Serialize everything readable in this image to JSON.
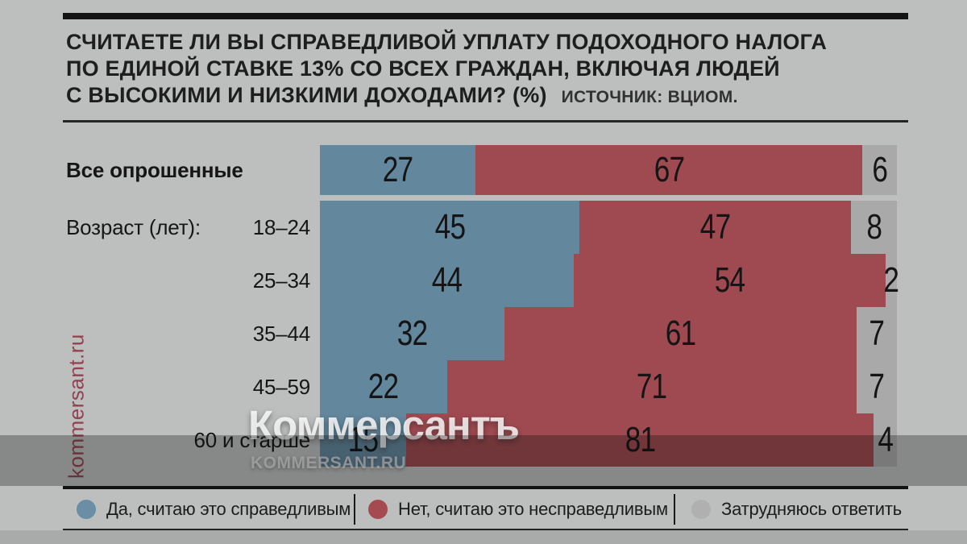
{
  "header": {
    "title_lines": [
      "Считаете ли вы справедливой уплату подоходного налога",
      "по единой ставке 13% со всех граждан, включая людей",
      "с высокими и низкими доходами? (%)"
    ],
    "source": "Источник: ВЦИОМ."
  },
  "chart_data": {
    "type": "bar",
    "orientation": "horizontal",
    "stacked": true,
    "unit": "%",
    "xlim": [
      0,
      100
    ],
    "grid": false,
    "legend_position": "bottom",
    "segment_colors": [
      "#63879d",
      "#9e4a50",
      "#a9a9a9"
    ],
    "series_labels": [
      "Да, считаю это справедливым",
      "Нет, считаю это несправедливым",
      "Затрудняюсь ответить"
    ],
    "group_label": "Возраст (лет):",
    "rows": [
      {
        "label": "Все опрошенные",
        "emphasis": true,
        "values": [
          27,
          67,
          6
        ]
      },
      {
        "label": "18–24",
        "show_group_label": true,
        "values": [
          45,
          47,
          8
        ]
      },
      {
        "label": "25–34",
        "values": [
          44,
          54,
          2
        ]
      },
      {
        "label": "35–44",
        "values": [
          32,
          61,
          7
        ]
      },
      {
        "label": "45–59",
        "values": [
          22,
          71,
          7
        ]
      },
      {
        "label": "60 и старше",
        "values": [
          15,
          81,
          4
        ]
      }
    ]
  },
  "legend": {
    "items": [
      {
        "label": "Да, считаю это справедливым",
        "color": "#6a8ea6"
      },
      {
        "label": "Нет, считаю это несправедливым",
        "color": "#a64a52"
      },
      {
        "label": "Затрудняюсь ответить",
        "color": "#b0b0b0"
      }
    ]
  },
  "watermarks": {
    "side": "kommersant.ru",
    "center": "Коммерсантъ",
    "center_sub": "KOMMERSANT.RU"
  },
  "accent_colors": {
    "top_bar": "#141414",
    "background": "#bdbfbf"
  }
}
